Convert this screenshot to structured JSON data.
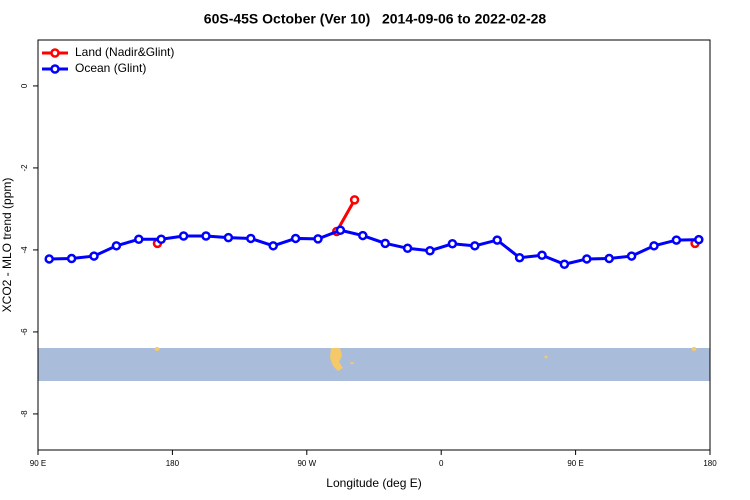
{
  "chart_data": {
    "type": "line",
    "title": "60S-45S October (Ver 10)   2014-09-06 to 2022-02-28",
    "x_label": "Longitude (deg E)",
    "y_label": "XCO2 - MLO trend (ppm)",
    "xlim": [
      90,
      540
    ],
    "xticks": [
      {
        "value": 90,
        "label": "90 E"
      },
      180,
      {
        "value": 270,
        "label": "90 W"
      },
      {
        "value": 360,
        "label": "0"
      },
      {
        "value": 450,
        "label": "90 E"
      },
      {
        "value": 540,
        "label": "180"
      }
    ],
    "ylim": [
      -8.88,
      1.12
    ],
    "yticks": [
      0,
      -2,
      -4,
      -6,
      -8
    ],
    "legend": "top-left",
    "series": [
      {
        "name": "Land (Nadir&Glint)",
        "color": "#ff0000",
        "x": [
          170,
          230,
          290,
          302,
          420,
          530
        ],
        "values": [
          -3.84,
          null,
          -3.55,
          -2.78,
          null,
          -3.84
        ]
      },
      {
        "name": "Ocean (Glint)",
        "color": "#0000ff",
        "x": [
          97.5,
          112.5,
          127.5,
          142.5,
          157.5,
          172.5,
          187.5,
          202.5,
          217.5,
          232.5,
          247.5,
          262.5,
          277.5,
          292.5,
          307.5,
          322.5,
          337.5,
          352.5,
          367.5,
          382.5,
          397.5,
          412.5,
          427.5,
          442.5,
          457.5,
          472.5,
          487.5,
          502.5,
          517.5,
          532.5
        ],
        "values": [
          -4.22,
          -4.21,
          -4.15,
          -3.9,
          -3.74,
          -3.74,
          -3.66,
          -3.66,
          -3.7,
          -3.72,
          -3.9,
          -3.72,
          -3.73,
          -3.52,
          -3.65,
          -3.84,
          -3.96,
          -4.02,
          -3.85,
          -3.9,
          -3.76,
          -4.19,
          -4.13,
          -4.35,
          -4.22,
          -4.21,
          -4.15,
          -3.9,
          -3.76,
          -3.75
        ]
      }
    ]
  }
}
